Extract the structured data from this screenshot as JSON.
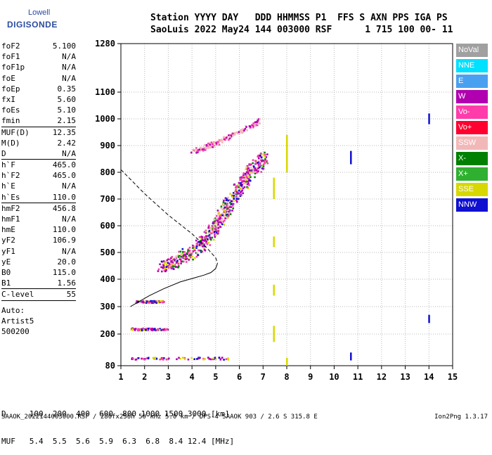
{
  "logo": {
    "line1": "Lowell",
    "line2": "DIGISONDE"
  },
  "header": {
    "line1": "Station YYYY DAY   DDD HHMMSS P1  FFS S AXN PPS IGA PS",
    "line2": "SaoLuis 2022 May24 144 003000 RSF      1 715 100 00- 11"
  },
  "params": [
    {
      "label": "foF2",
      "value": "5.100"
    },
    {
      "label": "foF1",
      "value": "N/A"
    },
    {
      "label": "foF1p",
      "value": "N/A"
    },
    {
      "label": "foE",
      "value": "N/A"
    },
    {
      "label": "foEp",
      "value": "0.35"
    },
    {
      "label": "fxI",
      "value": "5.60"
    },
    {
      "label": "foEs",
      "value": "5.10"
    },
    {
      "label": "fmin",
      "value": "2.15",
      "sep": true
    },
    {
      "label": "MUF(D)",
      "value": "12.35"
    },
    {
      "label": "M(D)",
      "value": "2.42"
    },
    {
      "label": "D",
      "value": "N/A",
      "sep": true
    },
    {
      "label": "h`F",
      "value": "465.0"
    },
    {
      "label": "h`F2",
      "value": "465.0"
    },
    {
      "label": "h`E",
      "value": "N/A"
    },
    {
      "label": "h`Es",
      "value": "110.0",
      "sep": true
    },
    {
      "label": "hmF2",
      "value": "456.8"
    },
    {
      "label": "hmF1",
      "value": "N/A"
    },
    {
      "label": "hmE",
      "value": "110.0"
    },
    {
      "label": "yF2",
      "value": "106.9"
    },
    {
      "label": "yF1",
      "value": "N/A"
    },
    {
      "label": "yE",
      "value": "20.0"
    },
    {
      "label": "B0",
      "value": "115.0"
    },
    {
      "label": "B1",
      "value": "1.56",
      "sep": true
    },
    {
      "label": "C-level",
      "value": "55",
      "sep": true
    }
  ],
  "auto": [
    "Auto:",
    "Artist5",
    "500200"
  ],
  "legend": [
    {
      "label": "NoVal",
      "color": "#a0a0a0"
    },
    {
      "label": "NNE",
      "color": "#00e0ff"
    },
    {
      "label": "E",
      "color": "#4aa0f0"
    },
    {
      "label": "W",
      "color": "#b000b0"
    },
    {
      "label": "Vo-",
      "color": "#ff3caa"
    },
    {
      "label": "Vo+",
      "color": "#ff0030"
    },
    {
      "label": "SSW",
      "color": "#f2b8b8"
    },
    {
      "label": "X-",
      "color": "#008000"
    },
    {
      "label": "X+",
      "color": "#30b030"
    },
    {
      "label": "SSE",
      "color": "#d8d800"
    },
    {
      "label": "NNW",
      "color": "#1010d0"
    }
  ],
  "footer": {
    "line1": "D     100  200  400  600  800 1000 1500 3000 [km]",
    "line2": "MUF   5.4  5.5  5.6  5.9  6.3  6.8  8.4 12.4 [MHz]",
    "line3": "SAAOK_2022144003000.RSF / 280fx256h 50 kHz 5.0 km / DPS-4 SAAOK 903 / 2.6 S 315.8 E",
    "version": "Ion2Png 1.3.17"
  },
  "chart_data": {
    "type": "scatter",
    "x_ticks": [
      "1",
      "2",
      "3",
      "4",
      "5",
      "6",
      "7",
      "8",
      "9",
      "10",
      "11",
      "12",
      "13",
      "14",
      "15"
    ],
    "y_ticks": [
      "80",
      "200",
      "300",
      "400",
      "500",
      "600",
      "700",
      "800",
      "900",
      "1000",
      "1100",
      "1280"
    ],
    "xlim": [
      1,
      15
    ],
    "y_tick_values": [
      80,
      200,
      300,
      400,
      500,
      600,
      700,
      800,
      900,
      1000,
      1100,
      1280
    ],
    "grid": true,
    "f2_trace": {
      "x": [
        2.7,
        3.0,
        3.3,
        3.6,
        4.0,
        4.3,
        4.6,
        4.9,
        5.1,
        5.3,
        5.5,
        5.8,
        6.1,
        6.4,
        6.7,
        7.0
      ],
      "y": [
        450,
        458,
        470,
        488,
        505,
        530,
        560,
        590,
        620,
        650,
        680,
        720,
        760,
        800,
        830,
        860
      ]
    },
    "f2_multihop": {
      "x": [
        4.0,
        4.4,
        4.8,
        5.2,
        5.6,
        6.0,
        6.4,
        6.8
      ],
      "y": [
        880,
        890,
        905,
        920,
        940,
        955,
        975,
        995
      ]
    },
    "es_traces": [
      {
        "x1": 1.4,
        "x2": 5.5,
        "y": 110
      },
      {
        "x1": 1.4,
        "x2": 3.0,
        "y": 220
      },
      {
        "x1": 1.6,
        "x2": 2.8,
        "y": 320
      }
    ],
    "profile": {
      "x": [
        1.0,
        2.0,
        3.0,
        4.0,
        4.6,
        5.0,
        5.08,
        5.0,
        4.8,
        4.5,
        4.1,
        3.5,
        2.8,
        2.2,
        1.8,
        1.4
      ],
      "y": [
        810,
        720,
        640,
        570,
        520,
        480,
        460,
        440,
        425,
        415,
        405,
        390,
        365,
        340,
        320,
        300
      ]
    }
  }
}
